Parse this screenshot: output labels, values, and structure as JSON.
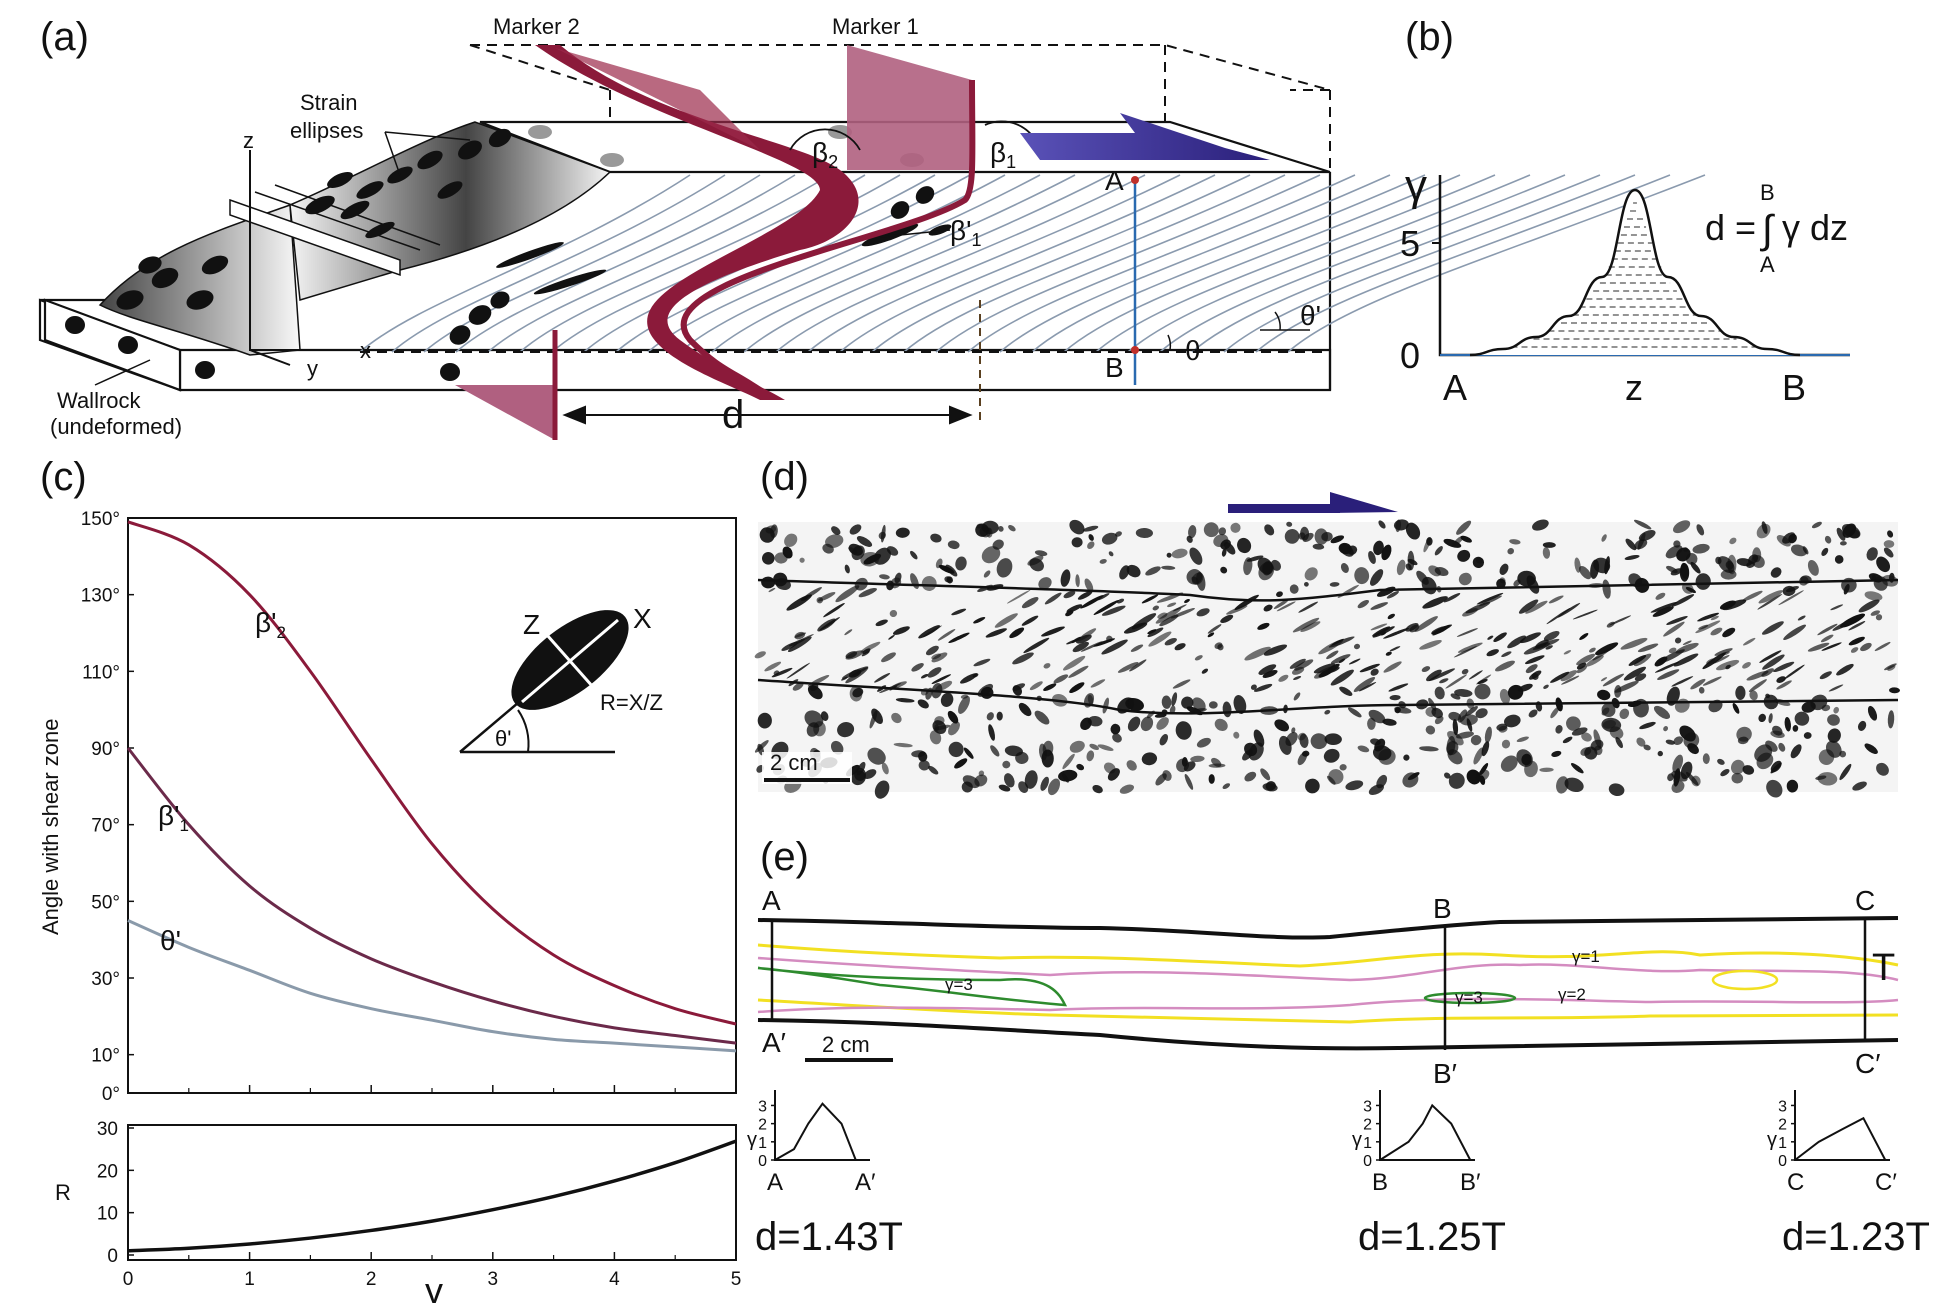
{
  "panels": {
    "a": "(a)",
    "b": "(b)",
    "c": "(c)",
    "d": "(d)",
    "e": "(e)"
  },
  "panel_a": {
    "marker2": "Marker 2",
    "marker1": "Marker 1",
    "strain_label": "Strain\nellipses",
    "strain_line1": "Strain",
    "strain_line2": "ellipses",
    "axis_z": "z",
    "axis_x": "x",
    "axis_y": "y",
    "wallrock1": "Wallrock",
    "wallrock2": "(undeformed)",
    "beta2": "β",
    "beta2_sub": "2",
    "beta1": "β",
    "beta1_sub": "1",
    "beta1p": "β'",
    "beta1p_sub": "1",
    "point_a": "A",
    "point_b": "B",
    "theta_p": "θ'",
    "theta": "θ",
    "d": "d"
  },
  "panel_b": {
    "ylabel": "γ",
    "y5": "5",
    "y0": "0",
    "xA": "A",
    "xz": "z",
    "xB": "B",
    "eq_d": "d =",
    "eq_int": "∫",
    "eq_body": "γ dz",
    "eq_upper": "B",
    "eq_lower": "A"
  },
  "panel_c": {
    "ylabel": "Angle with shear zone",
    "yticks": [
      "150°",
      "130°",
      "110°",
      "90°",
      "70°",
      "50°",
      "30°",
      "10°",
      "0°"
    ],
    "curve_b2": "β'",
    "curve_b2_sub": "2",
    "curve_b1": "β'",
    "curve_b1_sub": "1",
    "curve_theta": "θ'",
    "inset_z": "Z",
    "inset_x": "X",
    "inset_r": "R=X/Z",
    "inset_theta": "θ'",
    "r_label": "R",
    "r_ticks": [
      "30",
      "20",
      "10",
      "0"
    ],
    "x_ticks": [
      "0",
      "1",
      "2",
      "3",
      "4",
      "5"
    ],
    "xlabel": "γ"
  },
  "panel_d": {
    "scale": "2 cm"
  },
  "panel_e": {
    "sec_a": "A",
    "sec_ap": "A′",
    "sec_b": "B",
    "sec_bp": "B′",
    "sec_c": "C",
    "sec_cp": "C′",
    "t_label": "T",
    "scale": "2 cm",
    "g1": "γ=1",
    "g2": "γ=2",
    "g3a": "γ=3",
    "g3b": "γ=3",
    "mini_ticks": [
      "3",
      "2",
      "1",
      "0"
    ],
    "mini_ylabel": "γ",
    "d_a": "d=1.43T",
    "d_b": "d=1.25T",
    "d_c": "d=1.23T"
  },
  "chart_data": [
    {
      "type": "line",
      "title": "",
      "xlabel": "γ",
      "ylabel": "Angle with shear zone",
      "xlim": [
        0,
        5
      ],
      "ylim": [
        0,
        150
      ],
      "x": [
        0,
        0.5,
        1,
        1.5,
        2,
        2.5,
        3,
        3.5,
        4,
        4.5,
        5
      ],
      "series": [
        {
          "name": "β'2",
          "values": [
            149,
            143,
            130,
            110,
            87,
            65,
            48,
            36,
            28,
            22,
            18
          ]
        },
        {
          "name": "β'1",
          "values": [
            90,
            70,
            54,
            43,
            35,
            29,
            24,
            20,
            17,
            15,
            13
          ]
        },
        {
          "name": "θ'",
          "values": [
            45,
            38,
            32,
            26,
            22,
            19,
            16,
            14,
            13,
            12,
            11
          ]
        }
      ],
      "colors": {
        "β'2": "#8b1a3a",
        "β'1": "#6b2a4a",
        "θ'": "#8a9aaa"
      }
    },
    {
      "type": "line",
      "xlabel": "γ",
      "ylabel": "R",
      "xlim": [
        0,
        5
      ],
      "ylim": [
        0,
        30
      ],
      "x": [
        0,
        0.5,
        1,
        1.5,
        2,
        2.5,
        3,
        3.5,
        4,
        4.5,
        5
      ],
      "series": [
        {
          "name": "R",
          "values": [
            1,
            1.6,
            2.6,
            4,
            5.8,
            8,
            10.7,
            13.8,
            17.5,
            21.8,
            26.9
          ]
        }
      ]
    },
    {
      "type": "area",
      "xlabel": "z",
      "ylabel": "γ",
      "categories": [
        "A",
        "z",
        "B"
      ],
      "ylim": [
        0,
        6
      ],
      "x": [
        0,
        0.1,
        0.2,
        0.3,
        0.4,
        0.5,
        0.6,
        0.7,
        0.8,
        0.9,
        1
      ],
      "values": [
        0,
        0.2,
        0.6,
        1.3,
        2.6,
        5.5,
        2.6,
        1.3,
        0.6,
        0.2,
        0
      ]
    }
  ],
  "colors": {
    "marker": "#8b1a3a",
    "marker_face": "#b06080",
    "arrow": "#2a1f7a",
    "yellow": "#f2e022",
    "pink": "#d48cc0",
    "green": "#2e8b2e",
    "blue": "#2a6ab0"
  }
}
